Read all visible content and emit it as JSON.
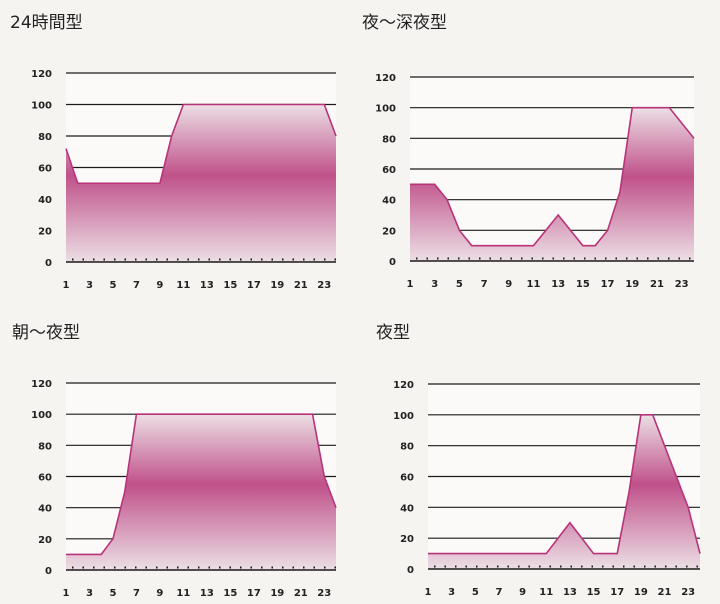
{
  "chart_data": [
    {
      "type": "area",
      "title": "24時間型",
      "xlabel": "",
      "ylabel": "",
      "ylim": [
        0,
        120
      ],
      "y_ticks": [
        0,
        20,
        40,
        60,
        80,
        100,
        120
      ],
      "x_tick_labels": [
        "1",
        "3",
        "5",
        "7",
        "9",
        "11",
        "13",
        "15",
        "17",
        "19",
        "21",
        "23"
      ],
      "x": [
        1,
        2,
        3,
        4,
        5,
        6,
        7,
        8,
        9,
        10,
        11,
        12,
        13,
        14,
        15,
        16,
        17,
        18,
        19,
        20,
        21,
        22,
        23,
        24
      ],
      "values": [
        72,
        50,
        50,
        50,
        50,
        50,
        50,
        50,
        50,
        80,
        100,
        100,
        100,
        100,
        100,
        100,
        100,
        100,
        100,
        100,
        100,
        100,
        100,
        80
      ],
      "grid": true,
      "colors": {
        "fill_top": "#c0518a",
        "fill_bottom": "#ecdfe5",
        "outline": "#b8337a"
      }
    },
    {
      "type": "area",
      "title": "夜〜深夜型",
      "xlabel": "",
      "ylabel": "",
      "ylim": [
        0,
        120
      ],
      "y_ticks": [
        0,
        20,
        40,
        60,
        80,
        100,
        120
      ],
      "x_tick_labels": [
        "1",
        "3",
        "5",
        "7",
        "9",
        "11",
        "13",
        "15",
        "17",
        "19",
        "21",
        "23"
      ],
      "x": [
        1,
        2,
        3,
        4,
        5,
        6,
        7,
        8,
        9,
        10,
        11,
        12,
        13,
        14,
        15,
        16,
        17,
        18,
        19,
        20,
        21,
        22,
        23,
        24
      ],
      "values": [
        50,
        50,
        50,
        40,
        20,
        10,
        10,
        10,
        10,
        10,
        10,
        20,
        30,
        20,
        10,
        10,
        20,
        45,
        100,
        100,
        100,
        100,
        90,
        80
      ],
      "grid": true,
      "colors": {
        "fill_top": "#c0518a",
        "fill_bottom": "#ecdfe5",
        "outline": "#b8337a"
      }
    },
    {
      "type": "area",
      "title": "朝〜夜型",
      "xlabel": "",
      "ylabel": "",
      "ylim": [
        0,
        120
      ],
      "y_ticks": [
        0,
        20,
        40,
        60,
        80,
        100,
        120
      ],
      "x_tick_labels": [
        "1",
        "3",
        "5",
        "7",
        "9",
        "11",
        "13",
        "15",
        "17",
        "19",
        "21",
        "23"
      ],
      "x": [
        1,
        2,
        3,
        4,
        5,
        6,
        7,
        8,
        9,
        10,
        11,
        12,
        13,
        14,
        15,
        16,
        17,
        18,
        19,
        20,
        21,
        22,
        23,
        24
      ],
      "values": [
        10,
        10,
        10,
        10,
        20,
        50,
        100,
        100,
        100,
        100,
        100,
        100,
        100,
        100,
        100,
        100,
        100,
        100,
        100,
        100,
        100,
        100,
        60,
        40
      ],
      "grid": true,
      "colors": {
        "fill_top": "#c0518a",
        "fill_bottom": "#ecdfe5",
        "outline": "#b8337a"
      }
    },
    {
      "type": "area",
      "title": "夜型",
      "xlabel": "",
      "ylabel": "",
      "ylim": [
        0,
        120
      ],
      "y_ticks": [
        0,
        20,
        40,
        60,
        80,
        100,
        120
      ],
      "x_tick_labels": [
        "1",
        "3",
        "5",
        "7",
        "9",
        "11",
        "13",
        "15",
        "17",
        "19",
        "21",
        "23"
      ],
      "x": [
        1,
        2,
        3,
        4,
        5,
        6,
        7,
        8,
        9,
        10,
        11,
        12,
        13,
        14,
        15,
        16,
        17,
        18,
        19,
        20,
        21,
        22,
        23,
        24
      ],
      "values": [
        10,
        10,
        10,
        10,
        10,
        10,
        10,
        10,
        10,
        10,
        10,
        20,
        30,
        20,
        10,
        10,
        10,
        50,
        100,
        100,
        80,
        60,
        40,
        10
      ],
      "grid": true,
      "colors": {
        "fill_top": "#c0518a",
        "fill_bottom": "#ecdfe5",
        "outline": "#b8337a"
      }
    }
  ]
}
